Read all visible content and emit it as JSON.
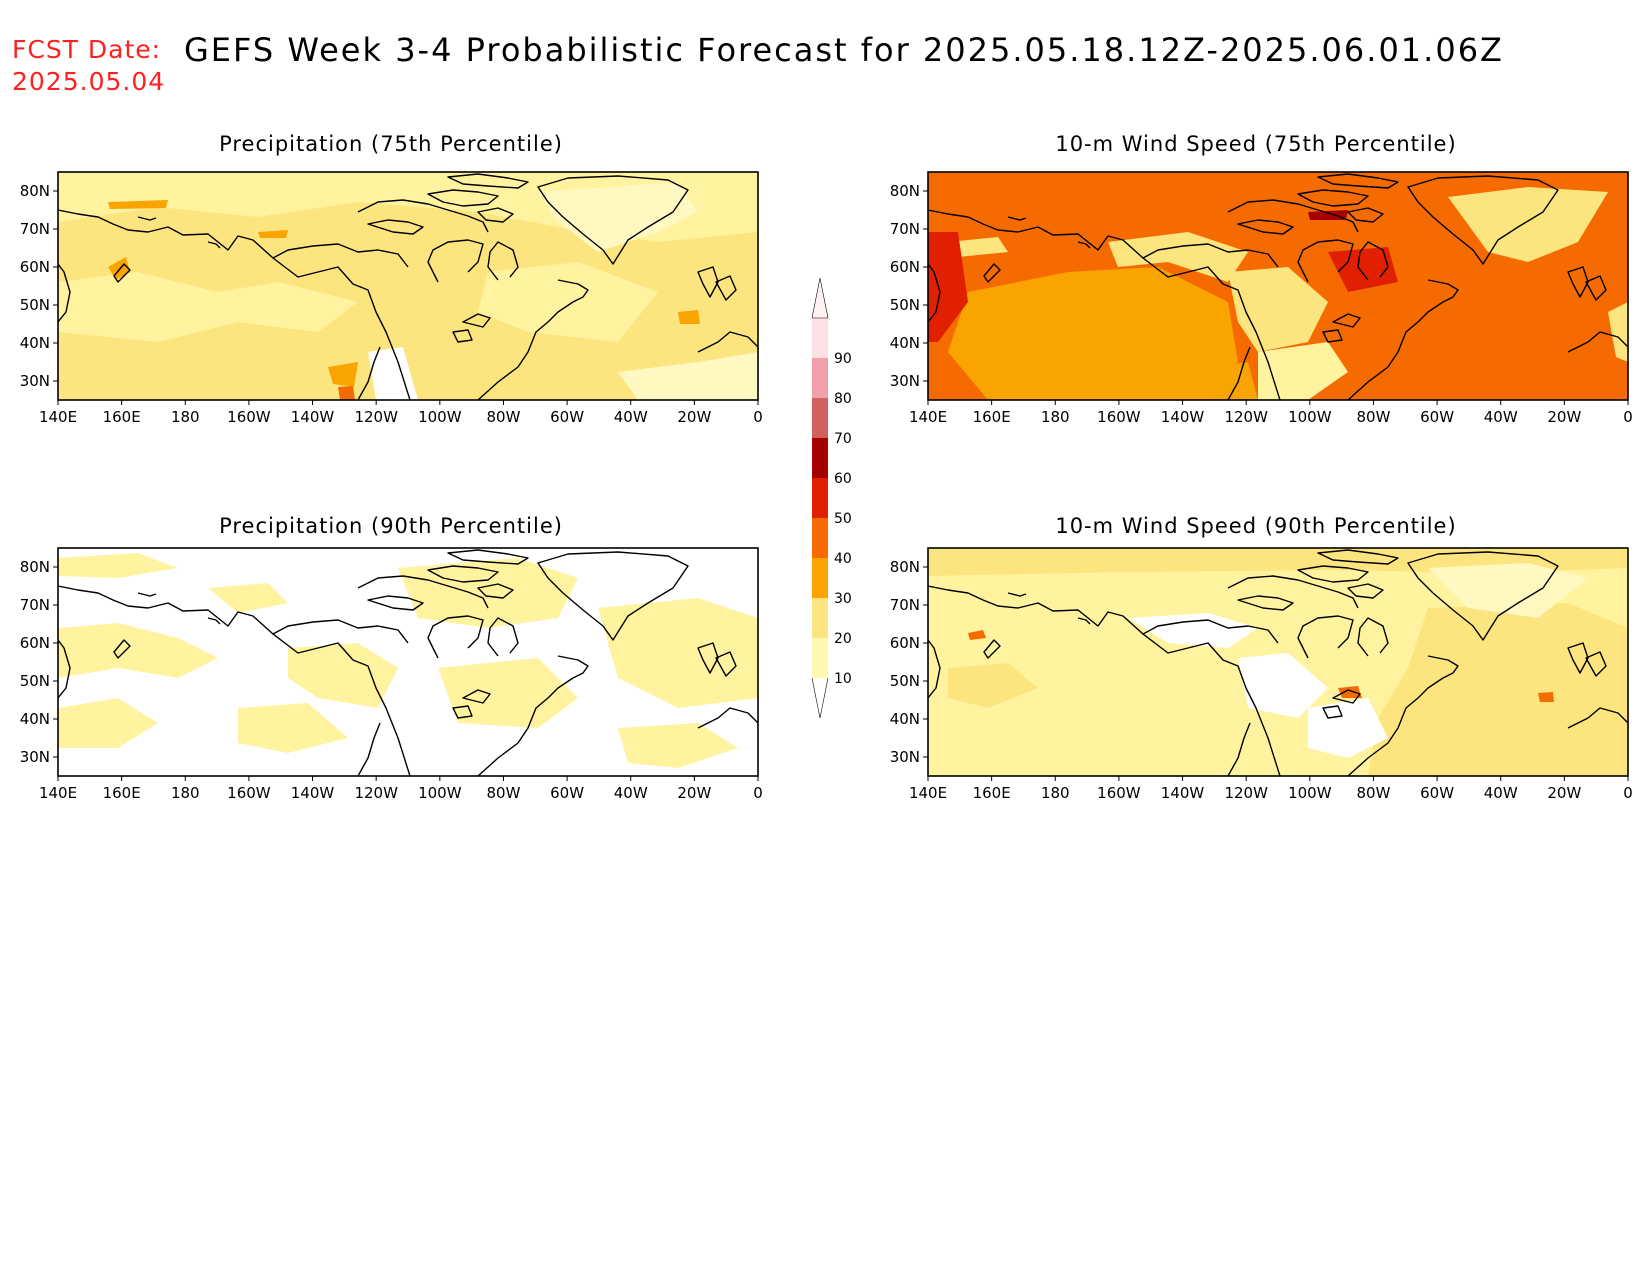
{
  "header": {
    "fcst_label": "FCST Date:",
    "fcst_date": "2025.05.04",
    "title": "GEFS Week 3-4 Probabilistic Forecast for 2025.05.18.12Z-2025.06.01.06Z"
  },
  "panels": [
    {
      "id": "precip75",
      "title": "Precipitation (75th Percentile)"
    },
    {
      "id": "wind75",
      "title": "10-m Wind Speed (75th Percentile)"
    },
    {
      "id": "precip90",
      "title": "Precipitation (90th Percentile)"
    },
    {
      "id": "wind90",
      "title": "10-m Wind Speed (90th Percentile)"
    }
  ],
  "axes": {
    "lon_labels": [
      "140E",
      "160E",
      "180",
      "160W",
      "140W",
      "120W",
      "100W",
      "80W",
      "60W",
      "40W",
      "20W",
      "0"
    ],
    "lat_labels": [
      "80N",
      "70N",
      "60N",
      "50N",
      "40N",
      "30N"
    ]
  },
  "colorbar": {
    "labels": [
      "10",
      "20",
      "30",
      "40",
      "50",
      "60",
      "70",
      "80",
      "90"
    ],
    "colors": [
      "#fff9b0",
      "#fce57f",
      "#f9a400",
      "#f56b00",
      "#e02000",
      "#a50000",
      "#d06060",
      "#f0a0a8",
      "#fce0e4"
    ]
  }
}
